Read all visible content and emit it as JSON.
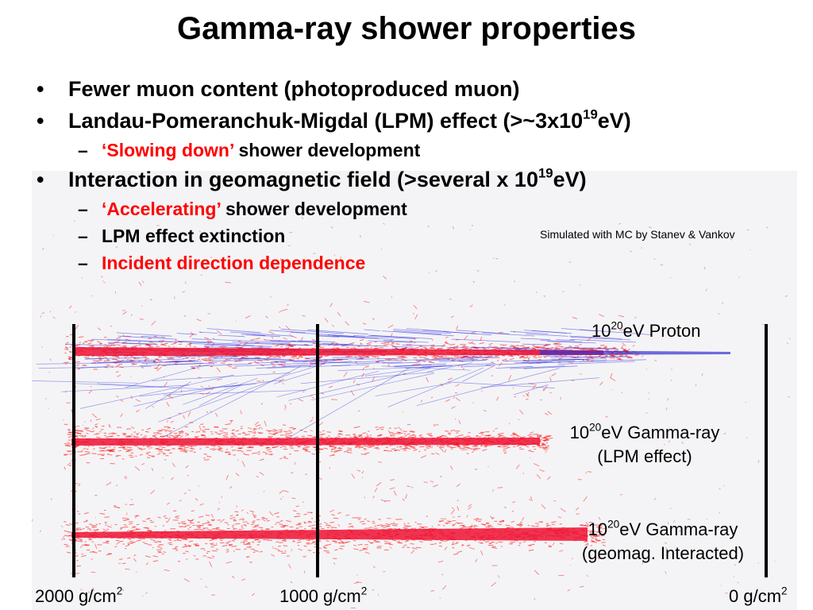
{
  "title": "Gamma-ray shower properties",
  "bullets": {
    "b1": "Fewer muon content (photoproduced muon)",
    "b2_pre": "Landau-Pomeranchuk-Migdal (LPM) effect (>~3x10",
    "b2_exp": "19",
    "b2_post": "eV)",
    "b2_sub_red": "‘Slowing down’",
    "b2_sub_rest": " shower development",
    "b3_pre": "Interaction in geomagnetic field (>several x 10",
    "b3_exp": "19",
    "b3_post": "eV)",
    "b3_sub1_red": "‘Accelerating’",
    "b3_sub1_rest": " shower development",
    "b3_sub2": "LPM effect extinction",
    "b3_sub3": "Incident direction dependence",
    "bullet_char": "•",
    "dash_char": "–"
  },
  "sim_credit": "Simulated with MC by Stanev & Vankov",
  "showers": {
    "proton": {
      "pre": "10",
      "exp": "20",
      "post": "eV Proton"
    },
    "gamma_lpm": {
      "pre": "10",
      "exp": "20",
      "post": "eV Gamma-ray",
      "line2": "(LPM effect)"
    },
    "gamma_geo": {
      "pre": "10",
      "exp": "20",
      "post": "eV Gamma-ray",
      "line2": "(geomag. Interacted)"
    }
  },
  "axis": {
    "left": {
      "value": "2000 g/cm",
      "exp": "2"
    },
    "mid": {
      "value": "1000 g/cm",
      "exp": "2"
    },
    "right": {
      "value": "0 g/cm",
      "exp": "2"
    }
  },
  "colors": {
    "red": "#ff0000",
    "blue": "#2020e0",
    "text": "#000000"
  }
}
